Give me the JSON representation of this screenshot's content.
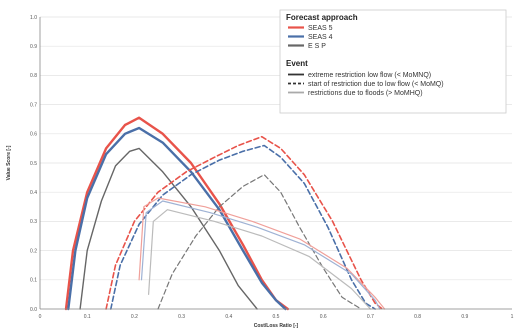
{
  "chart_data": {
    "type": "line",
    "xlabel": "Cost/Loss Ratio [-]",
    "ylabel": "Value Score [-]",
    "xlim": [
      0,
      1
    ],
    "ylim": [
      0,
      1
    ],
    "xticks": [
      "0",
      "0.1",
      "0.2",
      "0.3",
      "0.4",
      "0.5",
      "0.6",
      "0.7",
      "0.8",
      "0.9",
      "1"
    ],
    "yticks": [
      "0.0",
      "0.1",
      "0.2",
      "0.3",
      "0.4",
      "0.5",
      "0.6",
      "0.7",
      "0.8",
      "0.9",
      "1.0"
    ],
    "grid": "horizontal",
    "legend_position": "top-right",
    "legend_groups": [
      {
        "title": "Forecast approach",
        "entries": [
          {
            "label": "SEAS 5",
            "color": "#e8534a",
            "dash": "solid"
          },
          {
            "label": "SEAS 4",
            "color": "#4a6fa8",
            "dash": "solid"
          },
          {
            "label": "E S P",
            "color": "#666666",
            "dash": "solid"
          }
        ]
      },
      {
        "title": "Event",
        "entries": [
          {
            "label": "extreme restriction low flow (< MoMNQ)",
            "color": "#333333",
            "dash": "solid"
          },
          {
            "label": "start of restriction due to low flow (< MoMQ)",
            "color": "#333333",
            "dash": "dashed"
          },
          {
            "label": "restrictions due to floods (> MoMHQ)",
            "color": "#aaaaaa",
            "dash": "solid"
          }
        ]
      }
    ],
    "series": [
      {
        "name": "SEAS 5",
        "event": "extreme restriction low flow (< MoMNQ)",
        "color": "#e8534a",
        "dash": "solid",
        "width": 2.4,
        "x": [
          0.055,
          0.07,
          0.1,
          0.14,
          0.18,
          0.21,
          0.26,
          0.32,
          0.38,
          0.43,
          0.47,
          0.5,
          0.525
        ],
        "y": [
          0.0,
          0.2,
          0.4,
          0.55,
          0.63,
          0.655,
          0.6,
          0.5,
          0.36,
          0.22,
          0.1,
          0.03,
          0.0
        ]
      },
      {
        "name": "SEAS 4",
        "event": "extreme restriction low flow (< MoMNQ)",
        "color": "#4a6fa8",
        "dash": "solid",
        "width": 2.4,
        "x": [
          0.06,
          0.075,
          0.1,
          0.14,
          0.18,
          0.21,
          0.26,
          0.32,
          0.38,
          0.43,
          0.47,
          0.5,
          0.52
        ],
        "y": [
          0.0,
          0.2,
          0.38,
          0.53,
          0.6,
          0.62,
          0.57,
          0.47,
          0.34,
          0.2,
          0.09,
          0.03,
          0.0
        ]
      },
      {
        "name": "E S P",
        "event": "extreme restriction low flow (< MoMNQ)",
        "color": "#666666",
        "dash": "solid",
        "width": 1.4,
        "x": [
          0.085,
          0.1,
          0.13,
          0.16,
          0.19,
          0.21,
          0.26,
          0.32,
          0.38,
          0.42,
          0.46
        ],
        "y": [
          0.0,
          0.2,
          0.37,
          0.49,
          0.54,
          0.55,
          0.47,
          0.35,
          0.2,
          0.08,
          0.0
        ]
      },
      {
        "name": "SEAS 5",
        "event": "start of restriction due to low flow (< MoMQ)",
        "color": "#e8534a",
        "dash": "dashed",
        "width": 1.6,
        "x": [
          0.14,
          0.16,
          0.2,
          0.25,
          0.31,
          0.37,
          0.42,
          0.47,
          0.51,
          0.56,
          0.62,
          0.68,
          0.71,
          0.725
        ],
        "y": [
          0.0,
          0.15,
          0.3,
          0.4,
          0.47,
          0.52,
          0.56,
          0.59,
          0.55,
          0.46,
          0.3,
          0.1,
          0.02,
          0.0
        ]
      },
      {
        "name": "SEAS 4",
        "event": "start of restriction due to low flow (< MoMQ)",
        "color": "#4a6fa8",
        "dash": "dashed",
        "width": 1.6,
        "x": [
          0.15,
          0.17,
          0.21,
          0.26,
          0.32,
          0.38,
          0.43,
          0.475,
          0.51,
          0.56,
          0.61,
          0.66,
          0.69,
          0.71
        ],
        "y": [
          0.0,
          0.15,
          0.29,
          0.39,
          0.46,
          0.51,
          0.54,
          0.56,
          0.52,
          0.43,
          0.28,
          0.1,
          0.02,
          0.0
        ]
      },
      {
        "name": "E S P",
        "event": "start of restriction due to low flow (< MoMQ)",
        "color": "#777777",
        "dash": "dashed",
        "width": 1.2,
        "x": [
          0.25,
          0.28,
          0.33,
          0.38,
          0.43,
          0.475,
          0.51,
          0.55,
          0.6,
          0.64,
          0.68
        ],
        "y": [
          0.0,
          0.12,
          0.25,
          0.35,
          0.42,
          0.46,
          0.4,
          0.28,
          0.14,
          0.04,
          0.0
        ]
      },
      {
        "name": "SEAS 5",
        "event": "restrictions due to floods (> MoMHQ)",
        "color": "#f0a09a",
        "dash": "solid",
        "width": 1.2,
        "x": [
          0.21,
          0.22,
          0.25,
          0.35,
          0.45,
          0.55,
          0.65,
          0.71,
          0.73
        ],
        "y": [
          0.1,
          0.35,
          0.38,
          0.35,
          0.3,
          0.24,
          0.14,
          0.04,
          0.0
        ]
      },
      {
        "name": "SEAS 4",
        "event": "restrictions due to floods (> MoMHQ)",
        "color": "#9fb2d4",
        "dash": "solid",
        "width": 1.2,
        "x": [
          0.215,
          0.225,
          0.26,
          0.36,
          0.46,
          0.56,
          0.66,
          0.71,
          0.72
        ],
        "y": [
          0.1,
          0.33,
          0.37,
          0.33,
          0.28,
          0.22,
          0.12,
          0.03,
          0.0
        ]
      },
      {
        "name": "E S P",
        "event": "restrictions due to floods (> MoMHQ)",
        "color": "#bbbbbb",
        "dash": "solid",
        "width": 1.2,
        "x": [
          0.23,
          0.24,
          0.27,
          0.37,
          0.47,
          0.57,
          0.66,
          0.7
        ],
        "y": [
          0.05,
          0.3,
          0.34,
          0.3,
          0.25,
          0.18,
          0.07,
          0.0
        ]
      }
    ]
  }
}
